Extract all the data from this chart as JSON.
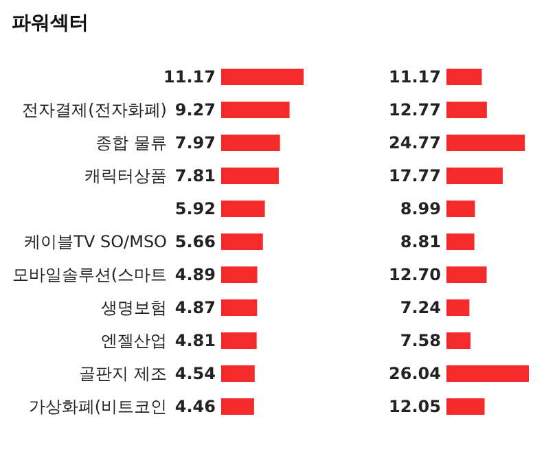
{
  "chart_data": [
    {
      "type": "bar",
      "title": "파워섹터",
      "orientation": "horizontal",
      "color": "#f52a2a",
      "categories": [
        null,
        "전자결제(전자화폐)",
        "종합 물류",
        "캐릭터상품",
        null,
        "케이블TV SO/MSO",
        "모바일솔루션(스마트",
        "생명보험",
        "엔젤산업",
        "골판지 제조",
        "가상화폐(비트코인"
      ],
      "values": [
        11.17,
        9.27,
        7.97,
        7.81,
        5.92,
        5.66,
        4.89,
        4.87,
        4.81,
        4.54,
        4.46
      ],
      "value_labels": [
        "11.17",
        "9.27",
        "7.97",
        "7.81",
        "5.92",
        "5.66",
        "4.89",
        "4.87",
        "4.81",
        "4.54",
        "4.46"
      ]
    },
    {
      "type": "bar",
      "orientation": "horizontal",
      "color": "#f52a2a",
      "categories": [
        null,
        null,
        null,
        null,
        null,
        null,
        null,
        null,
        null,
        null,
        null
      ],
      "values": [
        11.17,
        12.77,
        24.77,
        17.77,
        8.99,
        8.81,
        12.7,
        7.24,
        7.58,
        26.04,
        12.05
      ],
      "value_labels": [
        "11.17",
        "12.77",
        "24.77",
        "17.77",
        "8.99",
        "8.81",
        "12.70",
        "7.24",
        "7.58",
        "26.04",
        "12.05"
      ]
    }
  ]
}
